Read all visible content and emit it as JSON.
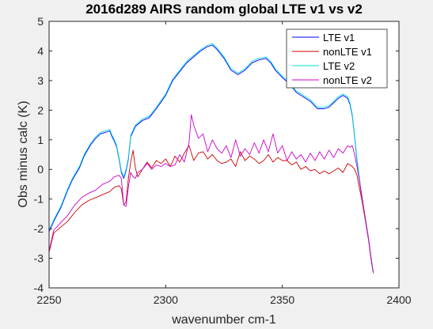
{
  "chart_data": {
    "type": "line",
    "title": "2016d289 AIRS random global LTE v1 vs v2",
    "xlabel": "wavenumber cm-1",
    "ylabel": "Obs minus calc (K)",
    "xlim": [
      2250,
      2400
    ],
    "ylim": [
      -4,
      5
    ],
    "xticks": [
      "2250",
      "2300",
      "2350",
      "2400"
    ],
    "yticks": [
      "-4",
      "-3",
      "-2",
      "-1",
      "0",
      "1",
      "2",
      "3",
      "4",
      "5"
    ],
    "legend_position": "top-right",
    "grid": false,
    "series": [
      {
        "name": "LTE v1",
        "color": "#0000ff",
        "x": [
          2250,
          2252,
          2255,
          2258,
          2260,
          2263,
          2265,
          2268,
          2270,
          2272,
          2274,
          2276,
          2277,
          2278,
          2279,
          2280,
          2281,
          2282,
          2283,
          2284,
          2285,
          2287,
          2290,
          2293,
          2296,
          2300,
          2303,
          2306,
          2309,
          2312,
          2315,
          2318,
          2320,
          2322,
          2325,
          2328,
          2331,
          2334,
          2337,
          2340,
          2343,
          2345,
          2347,
          2350,
          2353,
          2356,
          2359,
          2362,
          2365,
          2368,
          2370,
          2372,
          2374,
          2376,
          2378,
          2379,
          2380,
          2381,
          2382,
          2383,
          2384,
          2385,
          2386,
          2387,
          2388,
          2389
        ],
        "y": [
          -2.1,
          -1.75,
          -1.3,
          -0.7,
          -0.35,
          0.05,
          0.45,
          0.85,
          1.05,
          1.2,
          1.25,
          1.3,
          1.1,
          0.95,
          0.75,
          0.35,
          -0.1,
          -0.3,
          -0.05,
          0.35,
          1.1,
          1.45,
          1.65,
          1.75,
          2.05,
          2.5,
          3.0,
          3.3,
          3.6,
          3.8,
          4.0,
          4.15,
          4.2,
          4.05,
          3.75,
          3.35,
          3.2,
          3.35,
          3.6,
          3.7,
          3.75,
          3.6,
          3.35,
          3.1,
          2.9,
          2.6,
          2.45,
          2.3,
          2.05,
          2.05,
          2.1,
          2.25,
          2.4,
          2.5,
          2.4,
          2.2,
          1.8,
          1.1,
          0.3,
          -0.3,
          -0.9,
          -1.4,
          -1.9,
          -2.4,
          -3.0,
          -3.5
        ]
      },
      {
        "name": "nonLTE v1",
        "color": "#cc0000",
        "x": [
          2250,
          2252,
          2255,
          2258,
          2261,
          2264,
          2267,
          2270,
          2273,
          2276,
          2278,
          2280,
          2281,
          2282,
          2283,
          2284,
          2285,
          2286,
          2287,
          2288,
          2290,
          2292,
          2294,
          2296,
          2298,
          2300,
          2302,
          2304,
          2306,
          2308,
          2310,
          2312,
          2314,
          2316,
          2318,
          2320,
          2322,
          2324,
          2326,
          2328,
          2330,
          2332,
          2334,
          2336,
          2338,
          2340,
          2342,
          2344,
          2346,
          2348,
          2350,
          2352,
          2354,
          2356,
          2358,
          2360,
          2362,
          2364,
          2366,
          2368,
          2370,
          2372,
          2374,
          2376,
          2378,
          2379,
          2380,
          2381,
          2382,
          2383,
          2384,
          2385,
          2386,
          2387,
          2388,
          2389
        ],
        "y": [
          -2.8,
          -2.15,
          -1.95,
          -1.75,
          -1.45,
          -1.2,
          -1.05,
          -0.95,
          -0.85,
          -0.75,
          -0.6,
          -0.55,
          -0.65,
          -1.2,
          -1.1,
          -0.3,
          0.25,
          0.65,
          0.05,
          -0.25,
          0.0,
          0.25,
          0.05,
          0.3,
          0.2,
          0.35,
          0.1,
          0.45,
          0.25,
          0.55,
          0.8,
          0.3,
          0.55,
          0.6,
          0.35,
          0.5,
          0.3,
          0.2,
          0.25,
          0.35,
          0.1,
          0.6,
          0.3,
          0.45,
          0.35,
          0.2,
          0.3,
          0.5,
          0.25,
          0.4,
          0.3,
          0.3,
          0.15,
          0.25,
          0.0,
          0.1,
          -0.05,
          0.0,
          -0.15,
          -0.05,
          -0.15,
          -0.05,
          0.05,
          -0.1,
          0.2,
          0.15,
          0.1,
          0.0,
          -0.2,
          -0.6,
          -1.0,
          -1.45,
          -1.9,
          -2.4,
          -3.0,
          -3.5
        ]
      },
      {
        "name": "LTE v2",
        "color": "#00dddd",
        "x": [
          2250,
          2252,
          2255,
          2258,
          2260,
          2263,
          2265,
          2268,
          2270,
          2272,
          2274,
          2276,
          2277,
          2278,
          2279,
          2280,
          2281,
          2282,
          2283,
          2284,
          2285,
          2287,
          2290,
          2293,
          2296,
          2300,
          2303,
          2306,
          2309,
          2312,
          2315,
          2318,
          2320,
          2322,
          2325,
          2328,
          2331,
          2334,
          2337,
          2340,
          2343,
          2345,
          2347,
          2350,
          2353,
          2356,
          2359,
          2362,
          2365,
          2368,
          2370,
          2372,
          2374,
          2376,
          2378,
          2379,
          2380,
          2381,
          2382,
          2383,
          2384,
          2385,
          2386,
          2387,
          2388,
          2389
        ],
        "y": [
          -2.05,
          -1.7,
          -1.25,
          -0.65,
          -0.3,
          0.1,
          0.5,
          0.9,
          1.1,
          1.25,
          1.3,
          1.35,
          1.15,
          1.0,
          0.8,
          0.4,
          -0.05,
          -0.25,
          0.0,
          0.4,
          1.15,
          1.5,
          1.7,
          1.8,
          2.1,
          2.55,
          3.05,
          3.35,
          3.65,
          3.85,
          4.05,
          4.2,
          4.25,
          4.1,
          3.8,
          3.4,
          3.25,
          3.4,
          3.65,
          3.75,
          3.8,
          3.65,
          3.4,
          3.15,
          2.95,
          2.65,
          2.5,
          2.35,
          2.1,
          2.1,
          2.15,
          2.3,
          2.45,
          2.55,
          2.45,
          2.25,
          1.85,
          1.15,
          0.35,
          -0.25,
          -0.85,
          -1.35,
          -1.85,
          -2.35,
          -2.95,
          -3.45
        ]
      },
      {
        "name": "nonLTE v2",
        "color": "#cc00cc",
        "x": [
          2250,
          2252,
          2255,
          2258,
          2261,
          2264,
          2267,
          2270,
          2273,
          2276,
          2278,
          2280,
          2281,
          2282,
          2283,
          2284,
          2285,
          2286,
          2287,
          2288,
          2290,
          2292,
          2294,
          2296,
          2298,
          2300,
          2302,
          2304,
          2306,
          2308,
          2310,
          2311,
          2312,
          2314,
          2316,
          2318,
          2320,
          2322,
          2324,
          2326,
          2328,
          2330,
          2332,
          2334,
          2336,
          2338,
          2340,
          2342,
          2344,
          2346,
          2348,
          2350,
          2352,
          2354,
          2356,
          2358,
          2360,
          2362,
          2364,
          2366,
          2368,
          2370,
          2372,
          2374,
          2376,
          2378,
          2379,
          2380,
          2381,
          2382,
          2383,
          2384,
          2385,
          2386,
          2387,
          2388,
          2389
        ],
        "y": [
          -2.75,
          -2.05,
          -1.8,
          -1.55,
          -1.2,
          -0.95,
          -0.8,
          -0.7,
          -0.5,
          -0.4,
          -0.25,
          -0.2,
          -0.3,
          -1.2,
          -1.25,
          -0.6,
          -0.1,
          -0.25,
          -0.3,
          -0.1,
          0.0,
          0.2,
          0.0,
          0.15,
          0.1,
          0.2,
          0.1,
          0.15,
          0.5,
          0.25,
          0.9,
          1.85,
          1.5,
          1.05,
          1.2,
          0.6,
          1.0,
          0.7,
          0.55,
          0.8,
          0.4,
          1.0,
          0.45,
          0.7,
          0.5,
          0.9,
          0.55,
          1.0,
          0.6,
          1.2,
          0.55,
          0.8,
          0.3,
          0.6,
          0.35,
          0.5,
          0.25,
          0.55,
          0.3,
          0.6,
          0.35,
          0.65,
          0.4,
          0.7,
          0.55,
          0.8,
          0.75,
          0.8,
          0.5,
          0.1,
          -0.35,
          -0.85,
          -1.35,
          -1.85,
          -2.35,
          -2.95,
          -3.5
        ]
      }
    ]
  }
}
